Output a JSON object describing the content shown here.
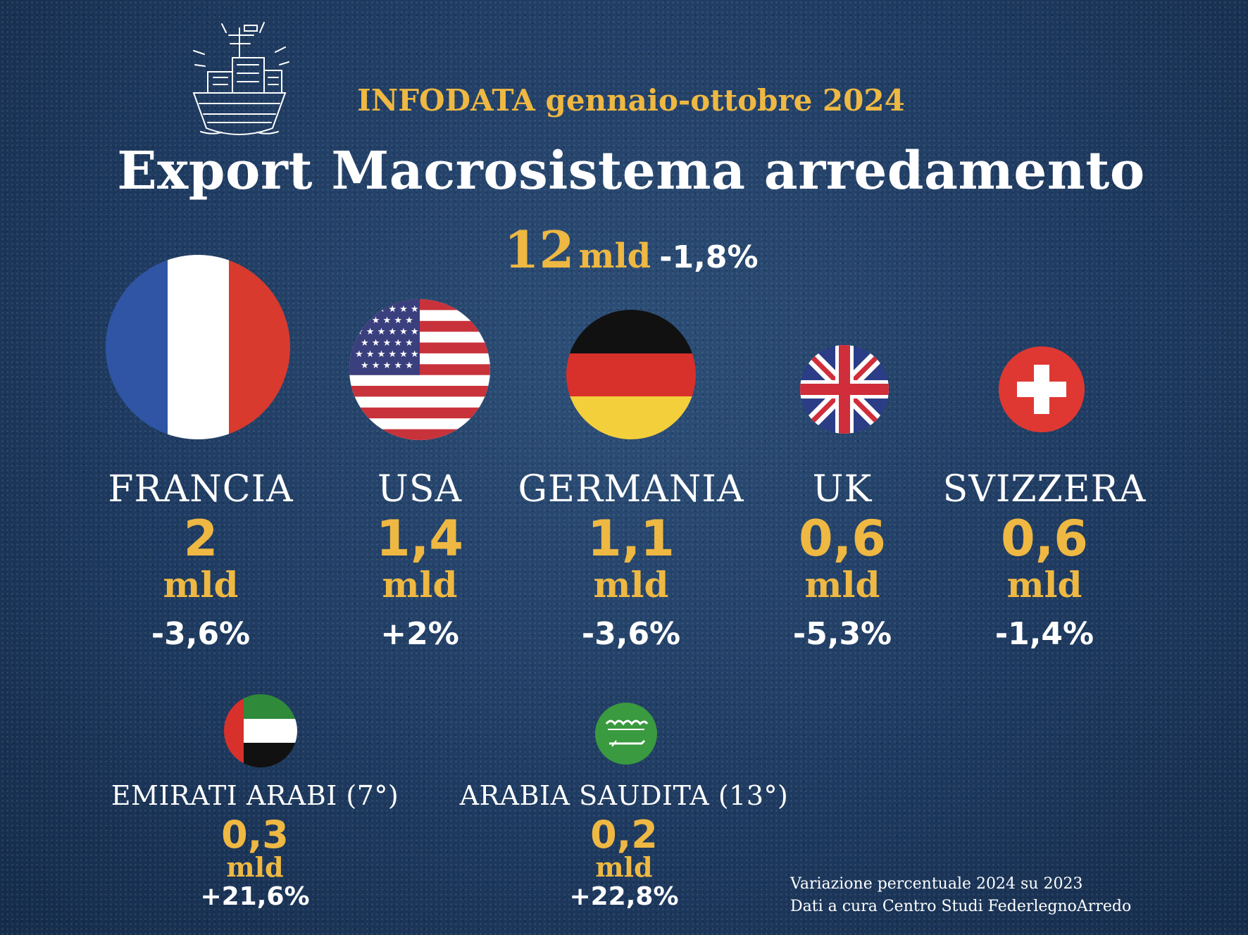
{
  "header": {
    "subtitle": "INFODATA gennaio-ottobre 2024",
    "title": "Export Macrosistema arredamento",
    "total_value": "12",
    "total_unit": "mld",
    "total_change": "-1,8%"
  },
  "countries": [
    {
      "name": "FRANCIA",
      "value": "2",
      "unit": "mld",
      "change": "-3,6%",
      "flag": "france-flag-icon"
    },
    {
      "name": "USA",
      "value": "1,4",
      "unit": "mld",
      "change": "+2%",
      "flag": "usa-flag-icon"
    },
    {
      "name": "GERMANIA",
      "value": "1,1",
      "unit": "mld",
      "change": "-3,6%",
      "flag": "germany-flag-icon"
    },
    {
      "name": "UK",
      "value": "0,6",
      "unit": "mld",
      "change": "-5,3%",
      "flag": "uk-flag-icon"
    },
    {
      "name": "SVIZZERA",
      "value": "0,6",
      "unit": "mld",
      "change": "-1,4%",
      "flag": "switzerland-flag-icon"
    }
  ],
  "secondary": [
    {
      "name": "EMIRATI ARABI (7°)",
      "value": "0,3",
      "unit": "mld",
      "change": "+21,6%",
      "flag": "uae-flag-icon"
    },
    {
      "name": "ARABIA SAUDITA (13°)",
      "value": "0,2",
      "unit": "mld",
      "change": "+22,8%",
      "flag": "saudi-flag-icon"
    }
  ],
  "footnote": {
    "line1": "Variazione percentuale 2024 su 2023",
    "line2": "Dati a cura Centro Studi FederlegnoArredo"
  },
  "colors": {
    "background": "#1f3b61",
    "accent": "#eeb842",
    "text": "#ffffff"
  }
}
